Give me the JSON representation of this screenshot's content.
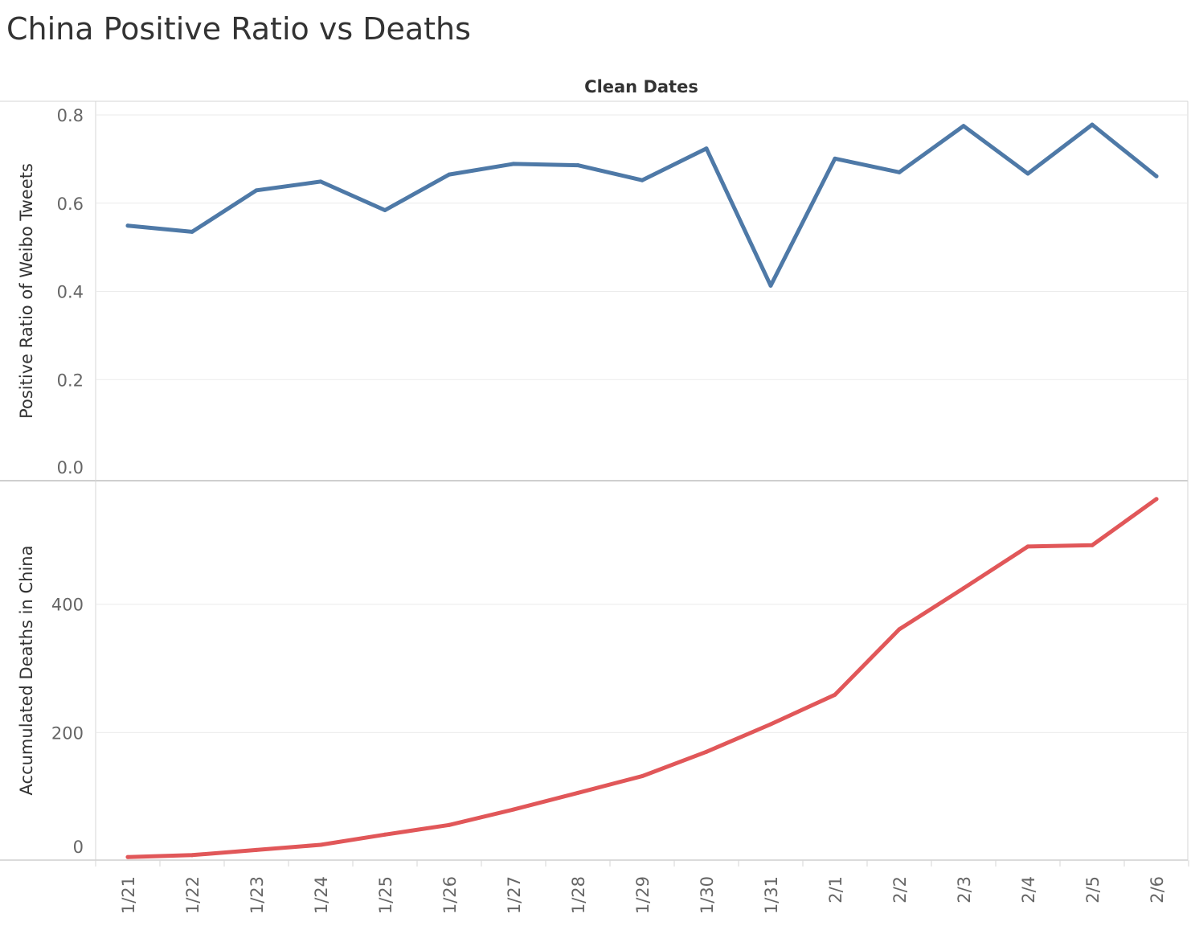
{
  "title": "China Positive Ratio vs Deaths",
  "chart_data": [
    {
      "type": "line",
      "column_header": "Clean Dates",
      "ylabel": "Positive Ratio of Weibo Tweets",
      "ylim": [
        0,
        0.8
      ],
      "yticks": [
        "0.0",
        "0.2",
        "0.4",
        "0.6",
        "0.8"
      ],
      "grid": true,
      "categories": [
        "1/21",
        "1/22",
        "1/23",
        "1/24",
        "1/25",
        "1/26",
        "1/27",
        "1/28",
        "1/29",
        "1/30",
        "1/31",
        "2/1",
        "2/2",
        "2/3",
        "2/4",
        "2/5",
        "2/6"
      ],
      "series": [
        {
          "values": [
            0.549,
            0.535,
            0.629,
            0.649,
            0.584,
            0.665,
            0.689,
            0.686,
            0.652,
            0.724,
            0.413,
            0.701,
            0.67,
            0.775,
            0.667,
            0.778,
            0.661
          ],
          "color": "#4e79a7"
        }
      ]
    },
    {
      "type": "line",
      "xlabel": "",
      "ylabel": "Accumulated Deaths in China",
      "ylim": [
        0,
        540
      ],
      "yticks": [
        "0",
        "200",
        "400"
      ],
      "grid": true,
      "categories": [
        "1/21",
        "1/22",
        "1/23",
        "1/24",
        "1/25",
        "1/26",
        "1/27",
        "1/28",
        "1/29",
        "1/30",
        "1/31",
        "2/1",
        "2/2",
        "2/3",
        "2/4",
        "2/5",
        "2/6"
      ],
      "series": [
        {
          "values": [
            6,
            9,
            17,
            25,
            41,
            56,
            80,
            106,
            132,
            170,
            213,
            259,
            361,
            425,
            490,
            492,
            564
          ],
          "color": "#e15759"
        }
      ]
    }
  ]
}
